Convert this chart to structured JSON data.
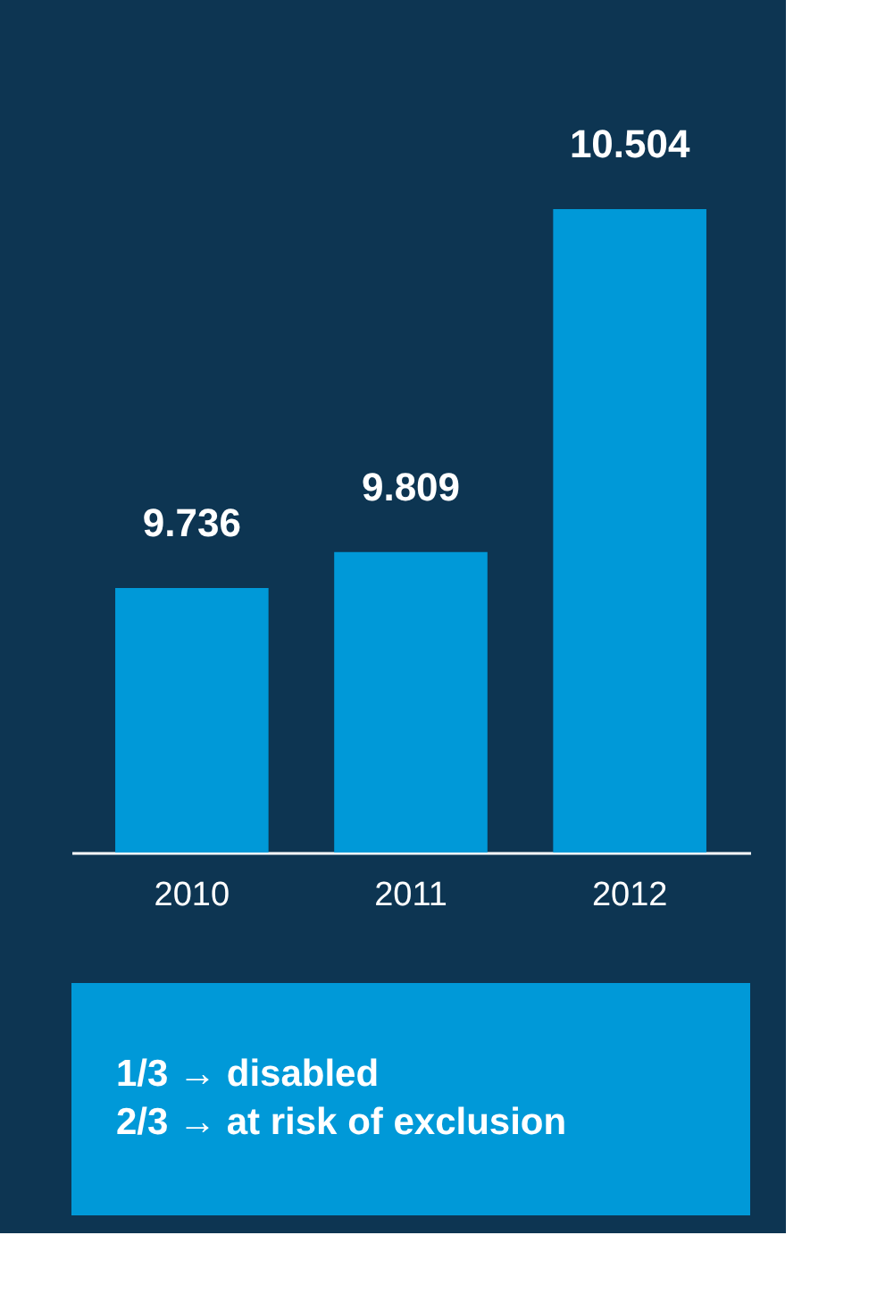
{
  "chart_data": {
    "type": "bar",
    "categories": [
      "2010",
      "2011",
      "2012"
    ],
    "values": [
      9.736,
      9.809,
      10.504
    ],
    "colors": [
      "#0099d8",
      "#0099d8",
      "#0099d8"
    ],
    "ylim": [
      9.2,
      10.504
    ],
    "data_labels": true,
    "tick_labels": "x",
    "grid": false,
    "annotations": [
      "1/3 → disabled",
      "2/3 → at risk of exclusion"
    ]
  }
}
